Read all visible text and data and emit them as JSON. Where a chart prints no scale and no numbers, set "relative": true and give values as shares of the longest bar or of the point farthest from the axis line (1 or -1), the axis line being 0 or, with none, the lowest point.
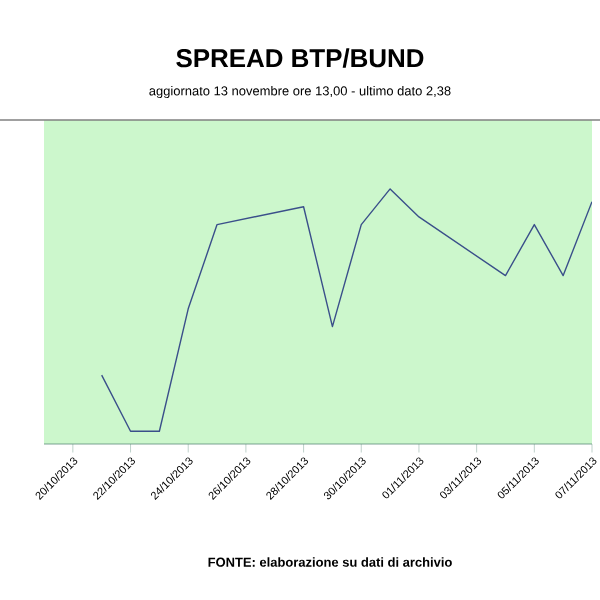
{
  "chart_data": {
    "type": "line",
    "title": "SPREAD BTP/BUND",
    "subtitle": "aggiornato 13 novembre ore 13,00 - ultimo dato 2,38",
    "annotations": [
      "FONTE: elaborazione su dati di archivio"
    ],
    "relative": true,
    "x": [
      "2013-10-21",
      "2013-10-22",
      "2013-10-23",
      "2013-10-24",
      "2013-10-25",
      "2013-10-28",
      "2013-10-29",
      "2013-10-30",
      "2013-10-31",
      "2013-11-01",
      "2013-11-04",
      "2013-11-05",
      "2013-11-06",
      "2013-11-07"
    ],
    "xlim": [
      "2013-10-19",
      "2013-11-07"
    ],
    "xticks": [
      {
        "value": "2013-10-20",
        "label": "20/10/2013"
      },
      {
        "value": "2013-10-22",
        "label": "22/10/2013"
      },
      {
        "value": "2013-10-24",
        "label": "24/10/2013"
      },
      {
        "value": "2013-10-26",
        "label": "26/10/2013"
      },
      {
        "value": "2013-10-28",
        "label": "28/10/2013"
      },
      {
        "value": "2013-10-30",
        "label": "30/10/2013"
      },
      {
        "value": "2013-11-01",
        "label": "01/11/2013"
      },
      {
        "value": "2013-11-03",
        "label": "03/11/2013"
      },
      {
        "value": "2013-11-05",
        "label": "05/11/2013"
      },
      {
        "value": "2013-11-07",
        "label": "07/11/2013"
      }
    ],
    "series": [
      {
        "color": "#3a4f8a",
        "values": [
          0.27,
          0.05,
          0.05,
          0.53,
          0.86,
          0.93,
          0.46,
          0.86,
          1,
          0.89,
          0.66,
          0.86,
          0.66,
          0.95
        ]
      }
    ]
  }
}
